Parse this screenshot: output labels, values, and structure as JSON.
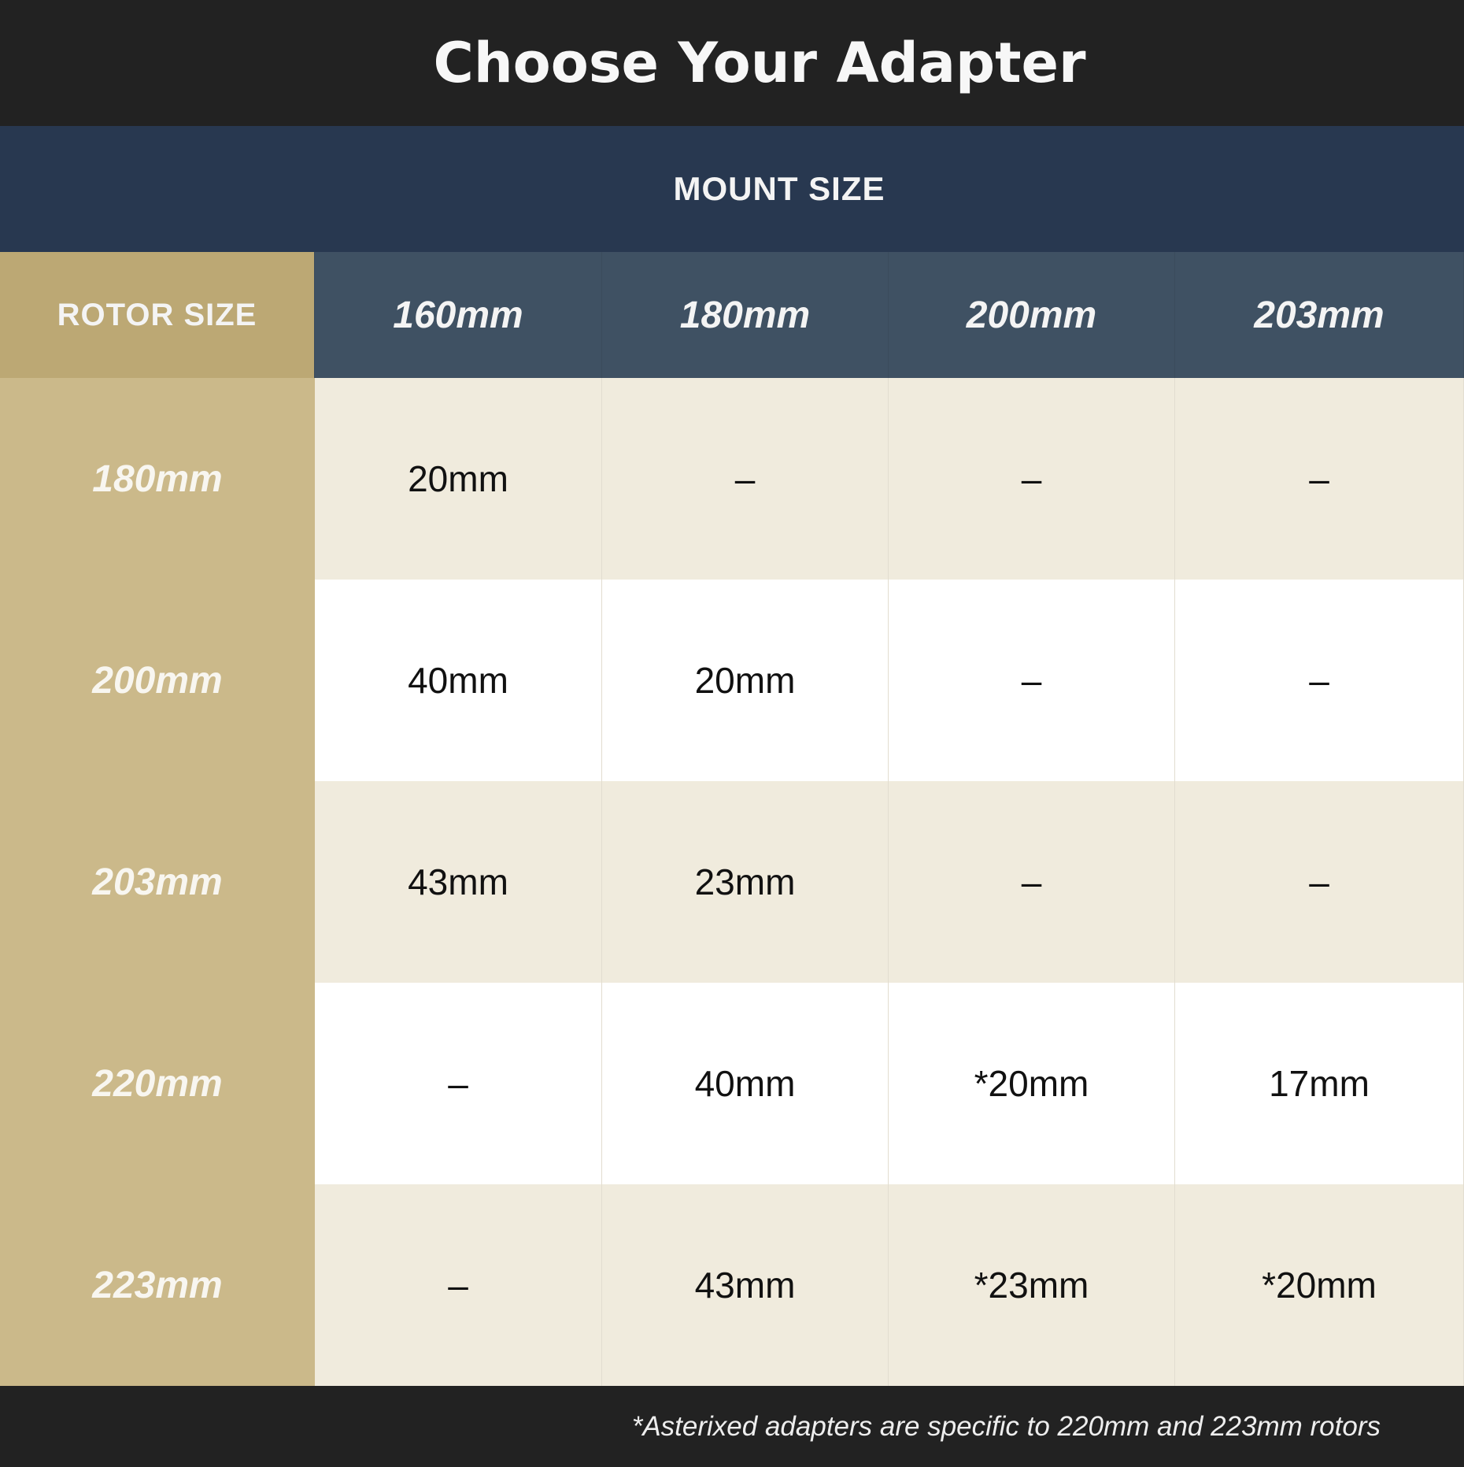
{
  "title": "Choose Your Adapter",
  "mount_label": "MOUNT SIZE",
  "rotor_label": "ROTOR SIZE",
  "columns": [
    "160mm",
    "180mm",
    "200mm",
    "203mm"
  ],
  "rows": [
    {
      "rotor": "180mm",
      "cells": [
        "20mm",
        "–",
        "–",
        "–"
      ]
    },
    {
      "rotor": "200mm",
      "cells": [
        "40mm",
        "20mm",
        "–",
        "–"
      ]
    },
    {
      "rotor": "203mm",
      "cells": [
        "43mm",
        "23mm",
        "–",
        "–"
      ]
    },
    {
      "rotor": "220mm",
      "cells": [
        "–",
        "40mm",
        "*20mm",
        "17mm"
      ]
    },
    {
      "rotor": "223mm",
      "cells": [
        "–",
        "43mm",
        "*23mm",
        "*20mm"
      ]
    }
  ],
  "footnote": "*Asterixed adapters are specific to 220mm and 223mm rotors",
  "colors": {
    "title_bg": "#222222",
    "mount_bg": "#283850",
    "header_bg": "#3f5163",
    "rotor_header_bg": "#bca874",
    "rotor_col_bg": "#cbb98a",
    "row_alt_bg": "#f0ebdd"
  }
}
